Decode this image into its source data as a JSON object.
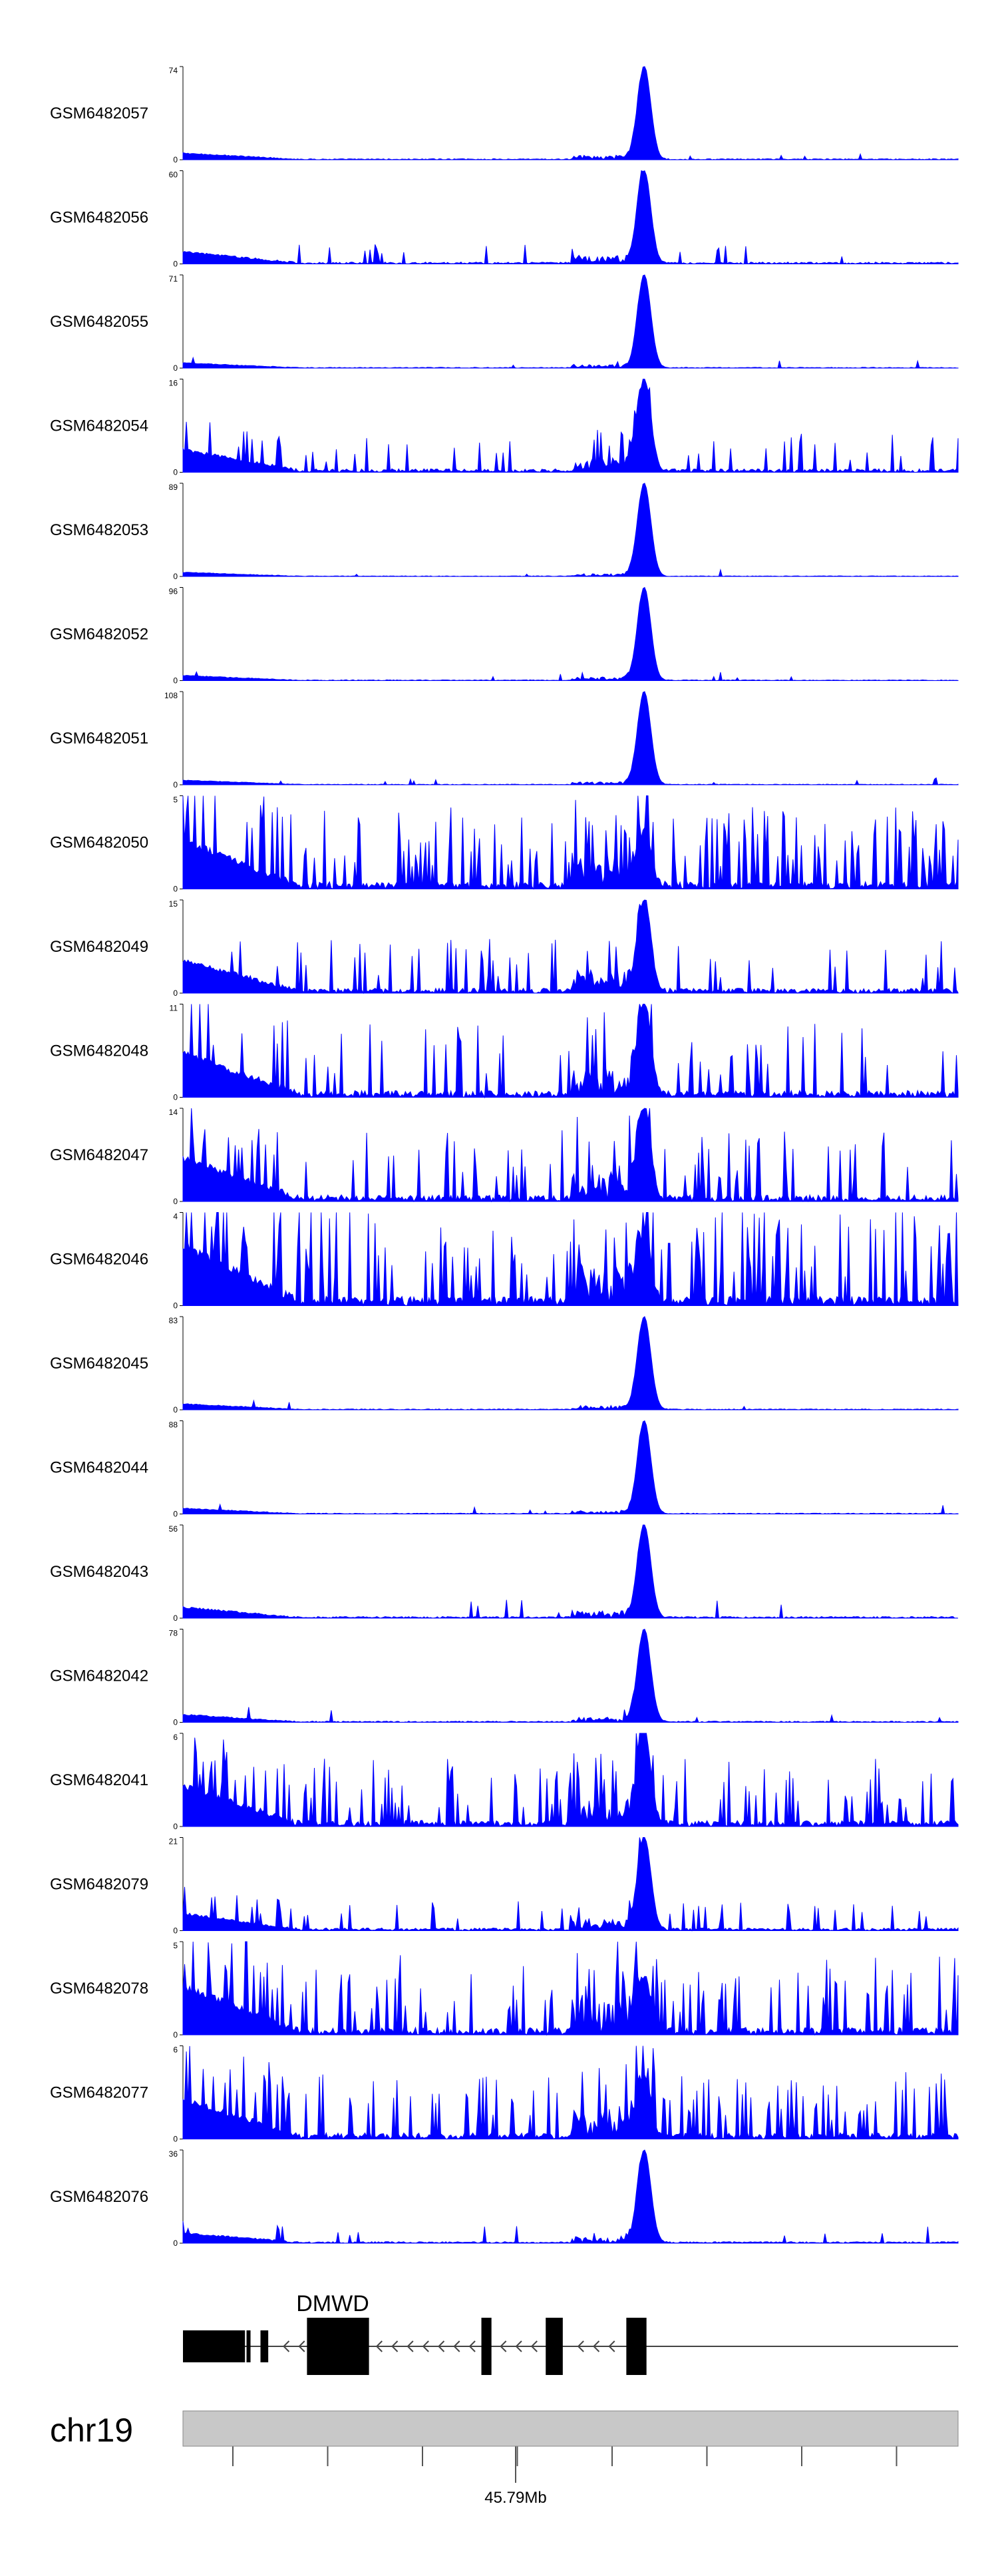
{
  "chart_data": {
    "type": "area",
    "title": "",
    "fill_color": "#0000ff",
    "series": [
      {
        "name": "GSM6482057",
        "ymax": 74,
        "ymin": 0,
        "peak": 74,
        "base": 4,
        "noise": 0.05
      },
      {
        "name": "GSM6482056",
        "ymax": 60,
        "ymin": 0,
        "peak": 60,
        "base": 6,
        "noise": 0.12
      },
      {
        "name": "GSM6482055",
        "ymax": 71,
        "ymin": 0,
        "peak": 71,
        "base": 3,
        "noise": 0.05
      },
      {
        "name": "GSM6482054",
        "ymax": 16,
        "ymin": 0,
        "peak": 16,
        "base": 3,
        "noise": 0.45
      },
      {
        "name": "GSM6482053",
        "ymax": 89,
        "ymin": 0,
        "peak": 89,
        "base": 3,
        "noise": 0.04
      },
      {
        "name": "GSM6482052",
        "ymax": 96,
        "ymin": 0,
        "peak": 96,
        "base": 4,
        "noise": 0.05
      },
      {
        "name": "GSM6482051",
        "ymax": 108,
        "ymin": 0,
        "peak": 108,
        "base": 4,
        "noise": 0.04
      },
      {
        "name": "GSM6482050",
        "ymax": 5,
        "ymin": 0,
        "peak": 3,
        "base": 2,
        "noise": 0.9
      },
      {
        "name": "GSM6482049",
        "ymax": 15,
        "ymin": 0,
        "peak": 15,
        "base": 4,
        "noise": 0.4
      },
      {
        "name": "GSM6482048",
        "ymax": 11,
        "ymin": 0,
        "peak": 11,
        "base": 4,
        "noise": 0.45
      },
      {
        "name": "GSM6482047",
        "ymax": 14,
        "ymin": 0,
        "peak": 14,
        "base": 5,
        "noise": 0.5
      },
      {
        "name": "GSM6482046",
        "ymax": 4,
        "ymin": 0,
        "peak": 3,
        "base": 2,
        "noise": 0.9
      },
      {
        "name": "GSM6482045",
        "ymax": 83,
        "ymin": 0,
        "peak": 83,
        "base": 4,
        "noise": 0.05
      },
      {
        "name": "GSM6482044",
        "ymax": 88,
        "ymin": 0,
        "peak": 88,
        "base": 4,
        "noise": 0.05
      },
      {
        "name": "GSM6482043",
        "ymax": 56,
        "ymin": 0,
        "peak": 56,
        "base": 5,
        "noise": 0.08
      },
      {
        "name": "GSM6482042",
        "ymax": 78,
        "ymin": 0,
        "peak": 78,
        "base": 5,
        "noise": 0.06
      },
      {
        "name": "GSM6482041",
        "ymax": 6,
        "ymin": 0,
        "peak": 6,
        "base": 2,
        "noise": 0.9
      },
      {
        "name": "GSM6482079",
        "ymax": 21,
        "ymin": 0,
        "peak": 21,
        "base": 3,
        "noise": 0.3
      },
      {
        "name": "GSM6482078",
        "ymax": 5,
        "ymin": 0,
        "peak": 3,
        "base": 2,
        "noise": 0.9
      },
      {
        "name": "GSM6482077",
        "ymax": 6,
        "ymin": 0,
        "peak": 4,
        "base": 2,
        "noise": 0.8
      },
      {
        "name": "GSM6482076",
        "ymax": 36,
        "ymin": 0,
        "peak": 36,
        "base": 3,
        "noise": 0.15
      }
    ],
    "gene": {
      "name": "DMWD",
      "strand": "-",
      "exons_frac": [
        [
          0.0,
          0.08
        ],
        [
          0.082,
          0.085
        ],
        [
          0.1,
          0.11
        ],
        [
          0.16,
          0.24
        ],
        [
          0.385,
          0.398
        ],
        [
          0.468,
          0.49
        ],
        [
          0.572,
          0.598
        ]
      ],
      "thick_frac": [
        [
          0.16,
          0.24
        ],
        [
          0.385,
          0.398
        ],
        [
          0.468,
          0.49
        ],
        [
          0.572,
          0.598
        ]
      ]
    },
    "peak_frac": 0.595,
    "axis": {
      "chromosome": "chr19",
      "tick_label": "45.79Mb",
      "tick_count": 8
    }
  }
}
